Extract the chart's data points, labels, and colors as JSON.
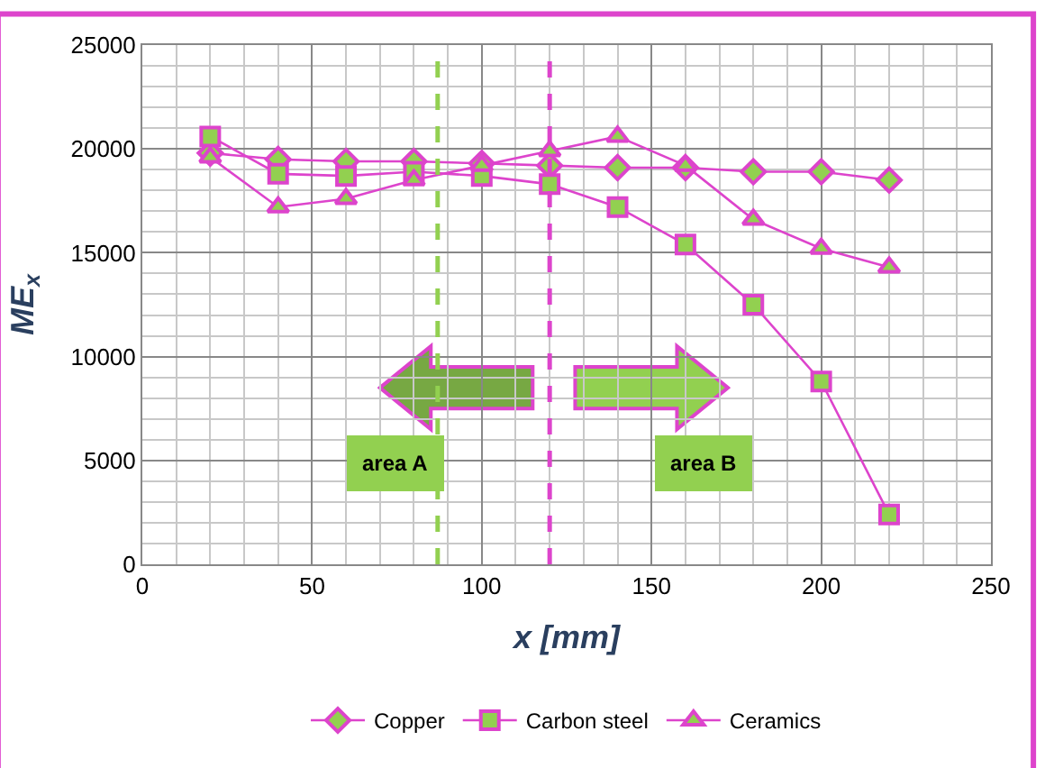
{
  "chart_data": {
    "type": "line",
    "xlabel": "x [mm]",
    "ylabel": "ME$_{x}$",
    "x": [
      20,
      40,
      60,
      80,
      100,
      120,
      140,
      160,
      180,
      200,
      220
    ],
    "series": [
      {
        "name": "Copper",
        "color": "#dd44cc",
        "marker": "diamond",
        "values": [
          19800,
          19500,
          19400,
          19400,
          19300,
          19200,
          19100,
          19100,
          18900,
          18900,
          18500
        ]
      },
      {
        "name": "Carbon steel",
        "color": "#dd44cc",
        "marker": "square",
        "values": [
          20600,
          18800,
          18700,
          18900,
          18700,
          18300,
          17200,
          15400,
          12500,
          8800,
          2400
        ]
      },
      {
        "name": "Ceramics",
        "color": "#dd44cc",
        "marker": "triangle",
        "values": [
          19600,
          17200,
          17600,
          18500,
          19200,
          19900,
          20600,
          19200,
          16600,
          15200,
          14300
        ]
      }
    ],
    "xlim": [
      0,
      250
    ],
    "xticks": [
      0,
      50,
      100,
      150,
      200,
      250
    ],
    "ylim": [
      0,
      25000
    ],
    "yticks": [
      0,
      5000,
      10000,
      15000,
      20000,
      25000
    ],
    "grid": true,
    "legend": "bottom",
    "line_style": "solid",
    "ref_lines": [
      {
        "axis": "x",
        "value": 87,
        "label": null,
        "color": "#92d050",
        "line_style": "dashed"
      },
      {
        "axis": "x",
        "value": 120,
        "label": null,
        "color": "#dd44cc",
        "line_style": "dashed"
      }
    ],
    "annotations": [
      "area A",
      "area B"
    ]
  }
}
